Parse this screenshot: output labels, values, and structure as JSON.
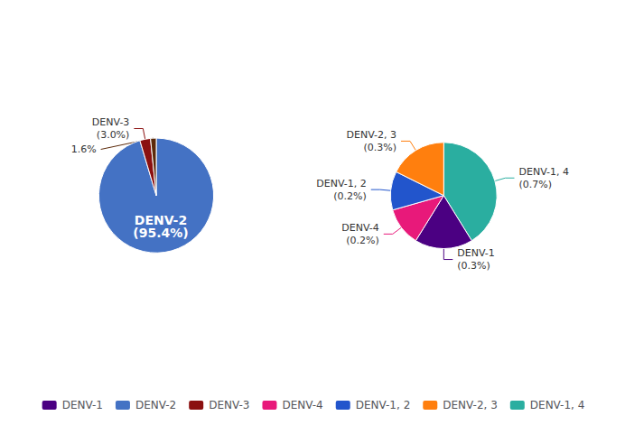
{
  "chart_data": [
    {
      "type": "pie",
      "categories": [
        "DENV-2",
        "DENV-3",
        null
      ],
      "values": [
        95.4,
        3.0,
        1.6
      ],
      "value_labels": [
        "(95.4%)",
        "(3.0%)",
        "1.6%"
      ],
      "colors": [
        "#4472C4",
        "#8B1010",
        "#5C2A0A"
      ],
      "data_labels": true
    },
    {
      "type": "pie",
      "categories": [
        "DENV-1, 4",
        "DENV-1",
        "DENV-4",
        "DENV-1, 2",
        "DENV-2, 3"
      ],
      "values": [
        0.7,
        0.3,
        0.2,
        0.2,
        0.3
      ],
      "value_labels": [
        "(0.7%)",
        "(0.3%)",
        "(0.2%)",
        "(0.2%)",
        "(0.3%)"
      ],
      "colors": [
        "#2AAEA0",
        "#4B0082",
        "#E8197A",
        "#2255CC",
        "#FF7F0E"
      ],
      "data_labels": true
    },
    {
      "type": "legend",
      "legend": "bottom",
      "series": [
        {
          "name": "DENV-1",
          "color": "#4B0082"
        },
        {
          "name": "DENV-2",
          "color": "#4472C4"
        },
        {
          "name": "DENV-3",
          "color": "#8B1010"
        },
        {
          "name": "DENV-4",
          "color": "#E8197A"
        },
        {
          "name": "DENV-1, 2",
          "color": "#2255CC"
        },
        {
          "name": "DENV-2, 3",
          "color": "#FF7F0E"
        },
        {
          "name": "DENV-1, 4",
          "color": "#2AAEA0"
        }
      ]
    }
  ]
}
